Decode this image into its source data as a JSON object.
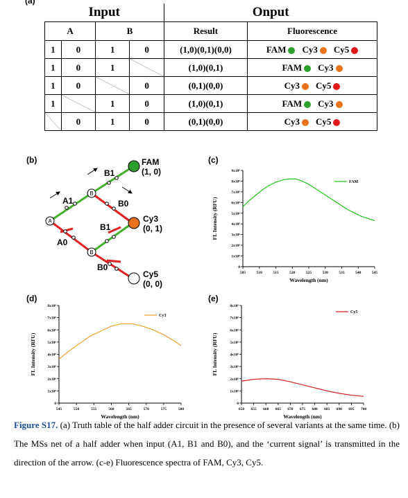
{
  "panel_a": {
    "label": "(a)",
    "header_input": "Input",
    "header_output": "Onput",
    "col_a": "A",
    "col_b": "B",
    "col_result": "Result",
    "col_fluor": "Fluorescence",
    "rows": [
      {
        "cells": [
          "1",
          "0",
          "1",
          "0"
        ],
        "result": "(1,0)(0,1)(0,0)",
        "fluor": [
          {
            "name": "FAM",
            "color": "#2ca02c"
          },
          {
            "name": "Cy3",
            "color": "#e8731c"
          },
          {
            "name": "Cy5",
            "color": "#e31a1c"
          }
        ]
      },
      {
        "cells": [
          "1",
          "0",
          "1",
          ""
        ],
        "result": "(1,0)(0,1)",
        "fluor": [
          {
            "name": "FAM",
            "color": "#2ca02c"
          },
          {
            "name": "Cy3",
            "color": "#e8731c"
          }
        ]
      },
      {
        "cells": [
          "1",
          "0",
          "",
          "0"
        ],
        "result": "(0,1)(0,0)",
        "fluor": [
          {
            "name": "Cy3",
            "color": "#e8731c"
          },
          {
            "name": "Cy5",
            "color": "#e31a1c"
          }
        ]
      },
      {
        "cells": [
          "1",
          "",
          "1",
          "0"
        ],
        "result": "(1,0)(0,1)",
        "fluor": [
          {
            "name": "FAM",
            "color": "#2ca02c"
          },
          {
            "name": "Cy3",
            "color": "#e8731c"
          }
        ]
      },
      {
        "cells": [
          "",
          "0",
          "1",
          "0"
        ],
        "result": "(0,1)(0,0)",
        "fluor": [
          {
            "name": "Cy3",
            "color": "#e8731c"
          },
          {
            "name": "Cy5",
            "color": "#e31a1c"
          }
        ]
      }
    ]
  },
  "panel_b": {
    "label": "(b)",
    "node_a": "A",
    "node_b": "B",
    "labels": {
      "b1_top": "B1",
      "a1": "A1",
      "b0_top": "B0",
      "b1_mid": "B1",
      "a0": "A0",
      "b0_bot": "B0"
    },
    "outputs": [
      {
        "name": "FAM",
        "value": "(1, 0)",
        "color": "#2ca02c"
      },
      {
        "name": "Cy3",
        "value": "(0, 1)",
        "color": "#e8731c"
      },
      {
        "name": "Cy5",
        "value": "(0, 0)",
        "color": "#ffffff"
      }
    ]
  },
  "charts": {
    "c": {
      "label": "(c)",
      "legend": "FAM",
      "xlabel": "Wavelength (nm)",
      "ylabel": "FL Intensity (RFU)"
    },
    "d": {
      "label": "(d)",
      "legend": "Cy3",
      "xlabel": "Wavelength (nm)",
      "ylabel": "FL Intensity (RFU)"
    },
    "e": {
      "label": "(e)",
      "legend": "Cy5",
      "xlabel": "Wavelength (nm)",
      "ylabel": "FL Intensity (RFU)"
    }
  },
  "chart_data": [
    {
      "type": "line",
      "panel": "c",
      "series": [
        {
          "name": "FAM",
          "color": "#22c41a",
          "x": [
            505,
            507,
            509,
            511,
            513,
            515,
            517,
            519,
            521,
            523,
            525,
            527,
            529,
            531,
            533,
            535,
            537,
            539,
            541,
            543,
            545
          ],
          "y": [
            5.6,
            6.2,
            6.7,
            7.2,
            7.6,
            7.9,
            8.1,
            8.2,
            8.2,
            8.0,
            7.7,
            7.3,
            6.9,
            6.5,
            6.1,
            5.7,
            5.3,
            5.0,
            4.7,
            4.5,
            4.3
          ]
        }
      ],
      "x_ticks": [
        505,
        510,
        515,
        520,
        525,
        530,
        535,
        540,
        545
      ],
      "y_ticks": [
        0,
        1,
        2,
        3,
        4,
        5,
        6,
        7,
        8,
        9
      ],
      "y_tick_labels": [
        "0",
        "1x10⁶",
        "2x10⁶",
        "3x10⁶",
        "4x10⁶",
        "5x10⁶",
        "6x10⁶",
        "7x10⁶",
        "8x10⁶",
        "9x10⁶"
      ],
      "xlim": [
        505,
        545
      ],
      "ylim": [
        0,
        9
      ],
      "xlabel": "Wavelength (nm)",
      "ylabel": "FL Intensity (RFU)"
    },
    {
      "type": "line",
      "panel": "d",
      "series": [
        {
          "name": "Cy3",
          "color": "#f0a030",
          "x": [
            545,
            548,
            551,
            554,
            557,
            560,
            563,
            566,
            569,
            572,
            575,
            578,
            580
          ],
          "y": [
            3.6,
            4.3,
            4.9,
            5.5,
            5.9,
            6.3,
            6.5,
            6.5,
            6.3,
            6.0,
            5.6,
            5.1,
            4.7
          ]
        }
      ],
      "x_ticks": [
        545,
        550,
        555,
        560,
        565,
        570,
        575,
        580
      ],
      "y_ticks": [
        0,
        1,
        2,
        3,
        4,
        5,
        6,
        7,
        8
      ],
      "y_tick_labels": [
        "0",
        "1x10⁶",
        "2x10⁶",
        "3x10⁶",
        "4x10⁶",
        "5x10⁶",
        "6x10⁶",
        "7x10⁶",
        "8x10⁶"
      ],
      "xlim": [
        545,
        580
      ],
      "ylim": [
        0,
        8
      ],
      "xlabel": "Wavelength (nm)",
      "ylabel": "FL Intensity (RFU)"
    },
    {
      "type": "line",
      "panel": "e",
      "series": [
        {
          "name": "Cy5",
          "color": "#d42020",
          "x": [
            650,
            655,
            660,
            665,
            670,
            675,
            680,
            685,
            690,
            695,
            700
          ],
          "y": [
            1.8,
            1.95,
            2.0,
            1.95,
            1.75,
            1.5,
            1.25,
            1.0,
            0.8,
            0.65,
            0.55
          ]
        }
      ],
      "x_ticks": [
        650,
        655,
        660,
        665,
        670,
        675,
        680,
        685,
        690,
        695,
        700
      ],
      "y_ticks": [
        0,
        1,
        2,
        3,
        4,
        5,
        6,
        7,
        8
      ],
      "y_tick_labels": [
        "0",
        "1x10⁶",
        "2x10⁶",
        "3x10⁶",
        "4x10⁶",
        "5x10⁶",
        "6x10⁶",
        "7x10⁶",
        "8x10⁶"
      ],
      "xlim": [
        650,
        700
      ],
      "ylim": [
        0,
        8
      ],
      "xlabel": "Wavelength (nm)",
      "ylabel": "FL Intensity (RFU)"
    }
  ],
  "caption": {
    "fig": "Figure S17.",
    "text": " (a) Truth table of the half adder circuit in the presence of several variants at the same time. (b) The MSs net of a half adder when input (A1, B1 and B0), and the ‘current signal’ is transmitted in the direction of the arrow. (c-e) Fluorescence spectra of FAM, Cy3, Cy5."
  }
}
